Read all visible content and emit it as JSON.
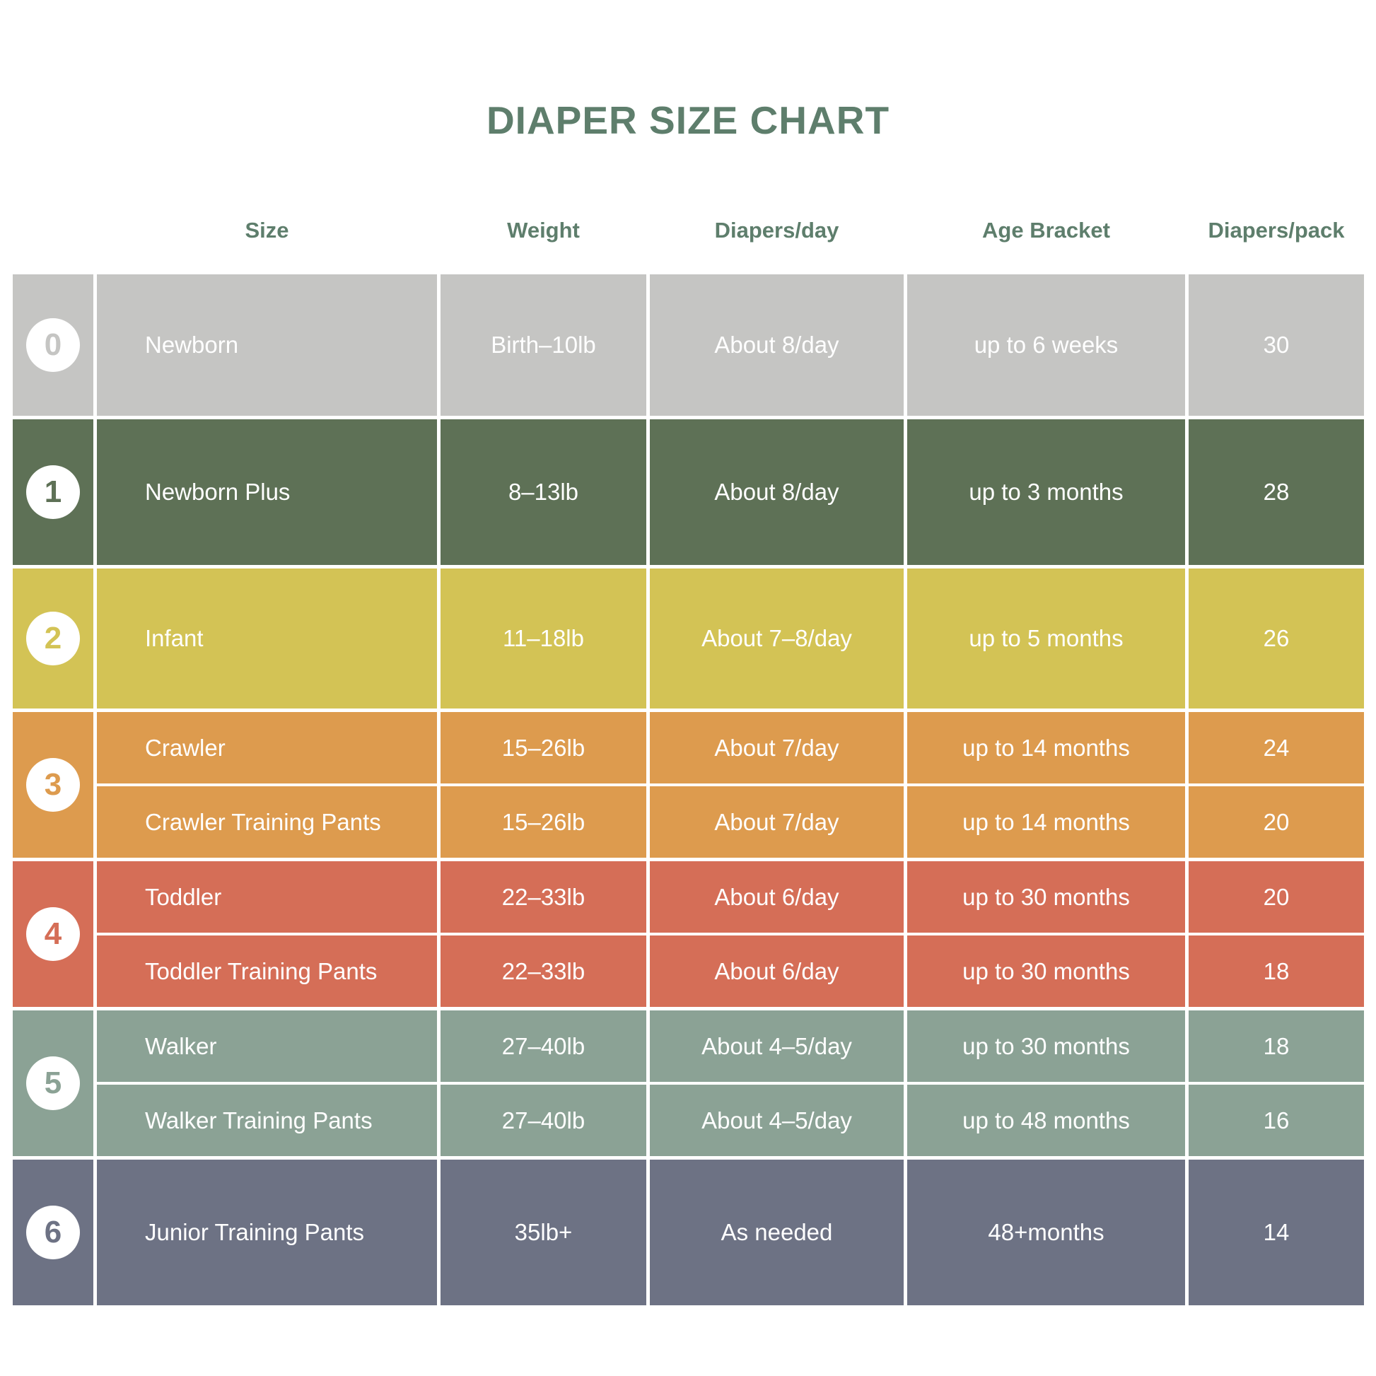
{
  "page": {
    "title": "DIAPER SIZE CHART"
  },
  "colors": {
    "heading_green": "#5e7e6c",
    "row_text": "#ffffff",
    "background": "#ffffff"
  },
  "table": {
    "columns": [
      "Size",
      "Weight",
      "Diapers/day",
      "Age Bracket",
      "Diapers/pack"
    ],
    "groups": [
      {
        "number": "0",
        "color": "#c5c5c3",
        "rows": [
          {
            "size": "Newborn",
            "weight": "Birth–10lb",
            "per_day": "About 8/day",
            "age": "up to 6 weeks",
            "per_pack": "30"
          }
        ]
      },
      {
        "number": "1",
        "color": "#5e7156",
        "rows": [
          {
            "size": "Newborn Plus",
            "weight": "8–13lb",
            "per_day": "About 8/day",
            "age": "up to 3 months",
            "per_pack": "28"
          }
        ]
      },
      {
        "number": "2",
        "color": "#d3c355",
        "rows": [
          {
            "size": "Infant",
            "weight": "11–18lb",
            "per_day": "About 7–8/day",
            "age": "up to 5 months",
            "per_pack": "26"
          }
        ]
      },
      {
        "number": "3",
        "color": "#dd9b4e",
        "rows": [
          {
            "size": "Crawler",
            "weight": "15–26lb",
            "per_day": "About 7/day",
            "age": "up to 14 months",
            "per_pack": "24"
          },
          {
            "size": "Crawler Training Pants",
            "weight": "15–26lb",
            "per_day": "About 7/day",
            "age": "up to 14 months",
            "per_pack": "20"
          }
        ]
      },
      {
        "number": "4",
        "color": "#d56e57",
        "rows": [
          {
            "size": "Toddler",
            "weight": "22–33lb",
            "per_day": "About 6/day",
            "age": "up to 30 months",
            "per_pack": "20"
          },
          {
            "size": "Toddler Training Pants",
            "weight": "22–33lb",
            "per_day": "About 6/day",
            "age": "up to 30 months",
            "per_pack": "18"
          }
        ]
      },
      {
        "number": "5",
        "color": "#8ba295",
        "rows": [
          {
            "size": "Walker",
            "weight": "27–40lb",
            "per_day": "About 4–5/day",
            "age": "up to 30 months",
            "per_pack": "18"
          },
          {
            "size": "Walker Training Pants",
            "weight": "27–40lb",
            "per_day": "About 4–5/day",
            "age": "up to 48 months",
            "per_pack": "16"
          }
        ]
      },
      {
        "number": "6",
        "color": "#6d7284",
        "rows": [
          {
            "size": "Junior Training Pants",
            "weight": "35lb+",
            "per_day": "As needed",
            "age": "48+months",
            "per_pack": "14"
          }
        ]
      }
    ]
  },
  "chart_data": {
    "type": "table",
    "title": "DIAPER SIZE CHART",
    "columns": [
      "Size #",
      "Size",
      "Weight",
      "Diapers/day",
      "Age Bracket",
      "Diapers/pack"
    ],
    "rows": [
      [
        "0",
        "Newborn",
        "Birth–10lb",
        "About 8/day",
        "up to 6 weeks",
        30
      ],
      [
        "1",
        "Newborn Plus",
        "8–13lb",
        "About 8/day",
        "up to 3 months",
        28
      ],
      [
        "2",
        "Infant",
        "11–18lb",
        "About 7–8/day",
        "up to 5 months",
        26
      ],
      [
        "3",
        "Crawler",
        "15–26lb",
        "About 7/day",
        "up to 14 months",
        24
      ],
      [
        "3",
        "Crawler Training Pants",
        "15–26lb",
        "About 7/day",
        "up to 14 months",
        20
      ],
      [
        "4",
        "Toddler",
        "22–33lb",
        "About 6/day",
        "up to 30 months",
        20
      ],
      [
        "4",
        "Toddler Training Pants",
        "22–33lb",
        "About 6/day",
        "up to 30 months",
        18
      ],
      [
        "5",
        "Walker",
        "27–40lb",
        "About 4–5/day",
        "up to 30 months",
        18
      ],
      [
        "5",
        "Walker Training Pants",
        "27–40lb",
        "About 4–5/day",
        "up to 48 months",
        16
      ],
      [
        "6",
        "Junior Training Pants",
        "35lb+",
        "As needed",
        "48+months",
        14
      ]
    ]
  }
}
